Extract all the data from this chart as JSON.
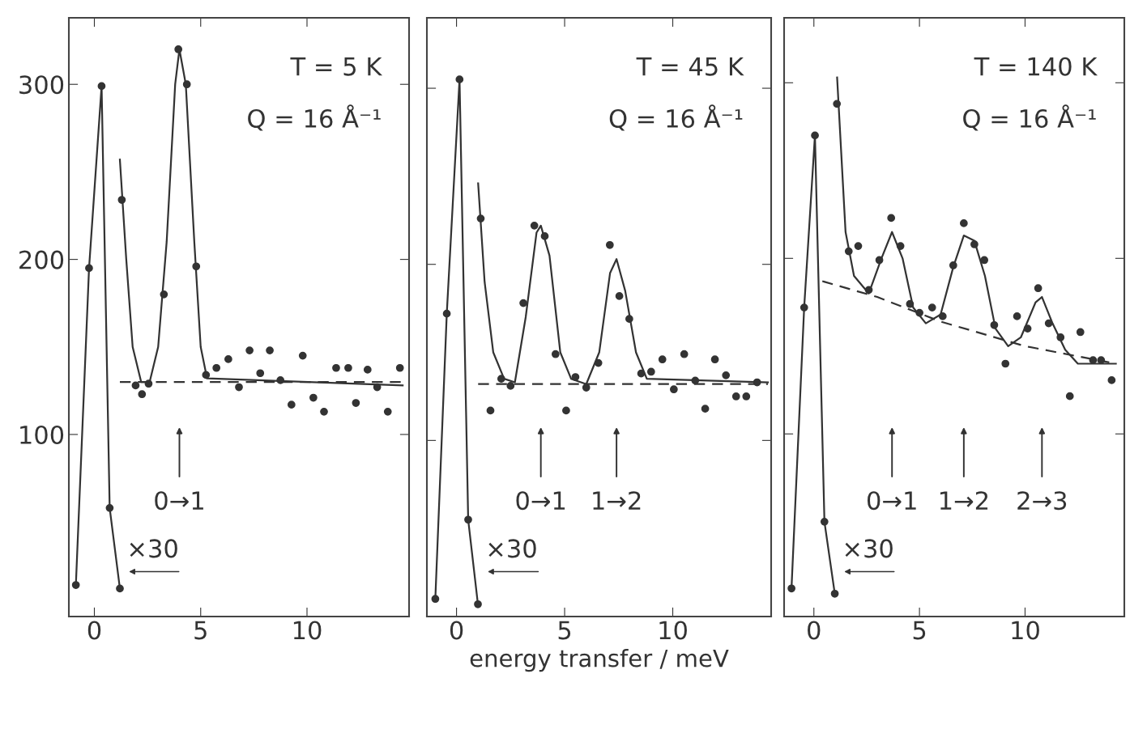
{
  "chart_data": [
    {
      "type": "scatter",
      "xlim": [
        -1.2,
        14.8
      ],
      "ylim": [
        -4,
        338
      ],
      "xticks": [
        0,
        5,
        10
      ],
      "yticks": [
        100,
        200,
        300
      ],
      "grid": false,
      "annotations": [
        "T = 5 K",
        "Q = 16 Å⁻¹",
        "×30",
        "0→1"
      ],
      "series": [
        {
          "type": "line",
          "marker": "circle",
          "line_style": "solid",
          "color": "#333333",
          "x": [
            -0.87,
            -0.25,
            0.34,
            0.72,
            1.2
          ],
          "values": [
            14,
            195,
            299,
            58,
            12
          ]
        },
        {
          "type": "scatter",
          "marker": "circle",
          "color": "#333333",
          "x": [
            1.29,
            1.94,
            2.24,
            2.55,
            3.27,
            3.95,
            4.35,
            4.79,
            5.25,
            5.74,
            6.3,
            6.8,
            7.3,
            7.8,
            8.25,
            8.75,
            9.27,
            9.8,
            10.3,
            10.8,
            11.37,
            11.94,
            12.3,
            12.85,
            13.3,
            13.8,
            14.37
          ],
          "values": [
            234,
            128,
            123,
            129,
            180,
            320,
            300,
            196,
            134,
            138,
            143,
            127,
            148,
            135,
            148,
            131,
            117,
            145,
            121,
            113,
            138,
            138,
            118,
            137,
            127,
            113,
            138
          ]
        },
        {
          "type": "line",
          "marker": "none",
          "line_style": "solid",
          "color": "#333333",
          "x": [
            1.2,
            1.5,
            1.8,
            2.2,
            2.6,
            3.0,
            3.4,
            3.8,
            4.0,
            4.3,
            4.7,
            5.0,
            5.3,
            14.5
          ],
          "values": [
            257,
            200,
            150,
            130,
            130,
            150,
            210,
            300,
            320,
            300,
            210,
            150,
            132,
            128
          ]
        },
        {
          "type": "line",
          "marker": "none",
          "line_style": "dashed",
          "color": "#333333",
          "x": [
            1.2,
            14.5
          ],
          "values": [
            130,
            130
          ]
        }
      ]
    },
    {
      "type": "scatter",
      "xlim": [
        -1.37,
        14.55
      ],
      "ylim": [
        0,
        340
      ],
      "xticks": [
        0,
        5,
        10
      ],
      "yticks": [
        100,
        200,
        300
      ],
      "tick_labels": "x",
      "grid": false,
      "xlabel": "energy transfer / meV",
      "annotations": [
        "T = 45 K",
        "Q = 16 Å⁻¹",
        "×30",
        "0→1",
        "1→2"
      ],
      "series": [
        {
          "type": "line",
          "marker": "circle",
          "line_style": "solid",
          "color": "#333333",
          "x": [
            -0.98,
            -0.45,
            0.14,
            0.54,
            0.99
          ],
          "values": [
            10,
            172,
            305,
            55,
            7
          ]
        },
        {
          "type": "scatter",
          "marker": "circle",
          "color": "#333333",
          "x": [
            1.12,
            1.57,
            2.07,
            2.5,
            3.09,
            3.6,
            4.08,
            4.58,
            5.07,
            5.5,
            6.0,
            6.56,
            7.09,
            7.53,
            7.99,
            8.54,
            9.0,
            9.52,
            10.05,
            10.53,
            11.04,
            11.5,
            11.95,
            12.46,
            12.93,
            13.4,
            13.9
          ],
          "values": [
            226,
            117,
            135,
            131,
            178,
            222,
            216,
            149,
            117,
            136,
            130,
            144,
            211,
            182,
            169,
            138,
            139,
            146,
            129,
            149,
            134,
            118,
            146,
            137,
            125,
            125,
            133
          ]
        },
        {
          "type": "line",
          "marker": "none",
          "line_style": "solid",
          "color": "#333333",
          "x": [
            1.0,
            1.3,
            1.7,
            2.2,
            2.7,
            3.2,
            3.7,
            3.9,
            4.3,
            4.8,
            5.3,
            6.0,
            6.6,
            7.1,
            7.4,
            7.8,
            8.3,
            8.8,
            14.4
          ],
          "values": [
            246,
            190,
            150,
            135,
            133,
            170,
            218,
            222,
            205,
            150,
            135,
            132,
            150,
            195,
            203,
            185,
            150,
            135,
            133
          ]
        },
        {
          "type": "line",
          "marker": "none",
          "line_style": "dashed",
          "color": "#333333",
          "x": [
            1.0,
            14.4
          ],
          "values": [
            132,
            132
          ]
        }
      ]
    },
    {
      "type": "scatter",
      "xlim": [
        -1.41,
        14.7
      ],
      "ylim": [
        -4,
        337
      ],
      "xticks": [
        0,
        5,
        10
      ],
      "yticks": [
        100,
        200,
        300
      ],
      "tick_labels": "x",
      "grid": false,
      "annotations": [
        "T = 140 K",
        "Q = 16 Å⁻¹",
        "×30",
        "0→1",
        "1→2",
        "2→3"
      ],
      "series": [
        {
          "type": "line",
          "marker": "circle",
          "line_style": "solid",
          "color": "#333333",
          "x": [
            -1.06,
            -0.46,
            0.05,
            0.5,
            0.99
          ],
          "values": [
            12,
            172,
            270,
            50,
            9
          ]
        },
        {
          "type": "scatter",
          "marker": "circle",
          "color": "#333333",
          "x": [
            1.09,
            1.65,
            2.1,
            2.6,
            3.1,
            3.66,
            4.1,
            4.55,
            5.0,
            5.6,
            6.1,
            6.6,
            7.1,
            7.6,
            8.07,
            8.54,
            9.07,
            9.62,
            10.12,
            10.62,
            11.12,
            11.68,
            12.12,
            12.62,
            13.22,
            13.6,
            14.1
          ],
          "values": [
            288,
            204,
            207,
            182,
            199,
            223,
            207,
            174,
            169,
            172,
            167,
            196,
            220,
            208,
            199,
            162,
            140,
            167,
            160,
            183,
            163,
            155,
            121.5,
            158,
            142,
            142,
            130.6
          ]
        },
        {
          "type": "line",
          "marker": "none",
          "line_style": "solid",
          "color": "#333333",
          "x": [
            1.1,
            1.5,
            1.9,
            2.6,
            3.2,
            3.7,
            4.2,
            4.7,
            5.3,
            6.0,
            6.6,
            7.1,
            7.6,
            8.1,
            8.6,
            9.2,
            9.8,
            10.5,
            10.8,
            11.3,
            11.9,
            12.5,
            14.3
          ],
          "values": [
            303,
            215,
            190,
            180,
            200,
            215,
            200,
            172,
            163,
            168,
            195,
            213,
            210,
            190,
            160,
            150,
            155,
            175,
            178,
            163,
            148,
            140,
            140
          ]
        },
        {
          "type": "line",
          "marker": "none",
          "line_style": "dashed",
          "color": "#333333",
          "x": [
            0.4,
            3.0,
            6.0,
            10.0,
            14.3
          ],
          "values": [
            187,
            178,
            164,
            150,
            140
          ]
        }
      ]
    }
  ]
}
